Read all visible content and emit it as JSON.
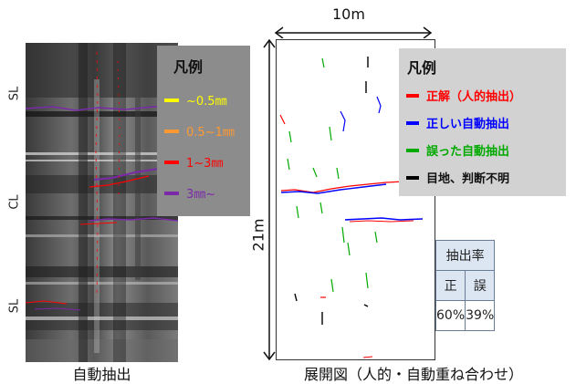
{
  "left_panel": {
    "side_labels": [
      "SL",
      "CL",
      "SL"
    ],
    "legend": {
      "title": "凡例",
      "items": [
        {
          "label": "~0.5㎜",
          "color": "#ffff00"
        },
        {
          "label": "0.5~1㎜",
          "color": "#ff9933"
        },
        {
          "label": "1~3㎜",
          "color": "#ff0000"
        },
        {
          "label": "3㎜~",
          "color": "#7a2aa8"
        }
      ]
    },
    "caption": "自動抽出"
  },
  "right_panel": {
    "width_label": "10m",
    "height_label": "21m",
    "legend": {
      "title": "凡例",
      "items": [
        {
          "label": "正解（人的抽出）",
          "color": "#ff0000"
        },
        {
          "label": "正しい自動抽出",
          "color": "#0000ff"
        },
        {
          "label": "誤った自動抽出",
          "color": "#00aa00"
        },
        {
          "label": "目地、判断不明",
          "color": "#000000"
        }
      ]
    },
    "rate_table": {
      "title": "抽出率",
      "headers": [
        "正",
        "誤"
      ],
      "values": [
        "60%",
        "39%"
      ]
    },
    "caption": "展開図（人的・自動重ね合わせ）"
  }
}
